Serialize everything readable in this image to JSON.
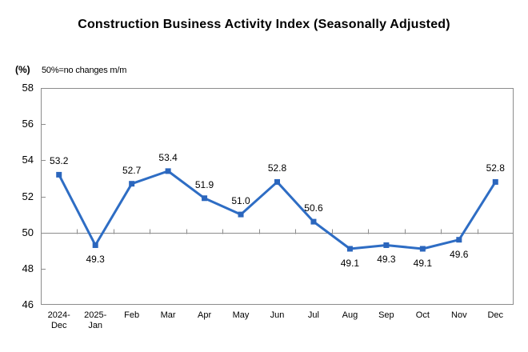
{
  "page": {
    "title": "Construction Business Activity Index (Seasonally Adjusted)",
    "y_unit_label": "(%)",
    "note": "50%=no changes m/m"
  },
  "chart_data": {
    "type": "line",
    "title": "Construction Business Activity Index (Seasonally Adjusted)",
    "categories": [
      "2024-Dec",
      "2025-Jan",
      "Feb",
      "Mar",
      "Apr",
      "May",
      "Jun",
      "Jul",
      "Aug",
      "Sep",
      "Oct",
      "Nov",
      "Dec"
    ],
    "x_tick_lines": [
      [
        "2024-",
        "Dec"
      ],
      [
        "2025-",
        "Jan"
      ],
      [
        "Feb"
      ],
      [
        "Mar"
      ],
      [
        "Apr"
      ],
      [
        "May"
      ],
      [
        "Jun"
      ],
      [
        "Jul"
      ],
      [
        "Aug"
      ],
      [
        "Sep"
      ],
      [
        "Oct"
      ],
      [
        "Nov"
      ],
      [
        "Dec"
      ]
    ],
    "series": [
      {
        "name": "Construction Business Activity Index",
        "values": [
          53.2,
          49.3,
          52.7,
          53.4,
          51.9,
          51.0,
          52.8,
          50.6,
          49.1,
          49.3,
          49.1,
          49.6,
          52.8
        ]
      }
    ],
    "data_labels": [
      "53.2",
      "49.3",
      "52.7",
      "53.4",
      "51.9",
      "51.0",
      "52.8",
      "50.6",
      "49.1",
      "49.3",
      "49.1",
      "49.6",
      "52.8"
    ],
    "xlabel": "",
    "ylabel": "(%)",
    "ylim": [
      46,
      58
    ],
    "yticks": [
      46,
      48,
      50,
      52,
      54,
      56,
      58
    ],
    "reference_line": 50,
    "grid": false,
    "legend": false,
    "marker": "square",
    "colors": {
      "line": "#2E6DC4",
      "marker": "#2B66BD",
      "axis": "#8C8C8C",
      "text": "#000000"
    }
  }
}
